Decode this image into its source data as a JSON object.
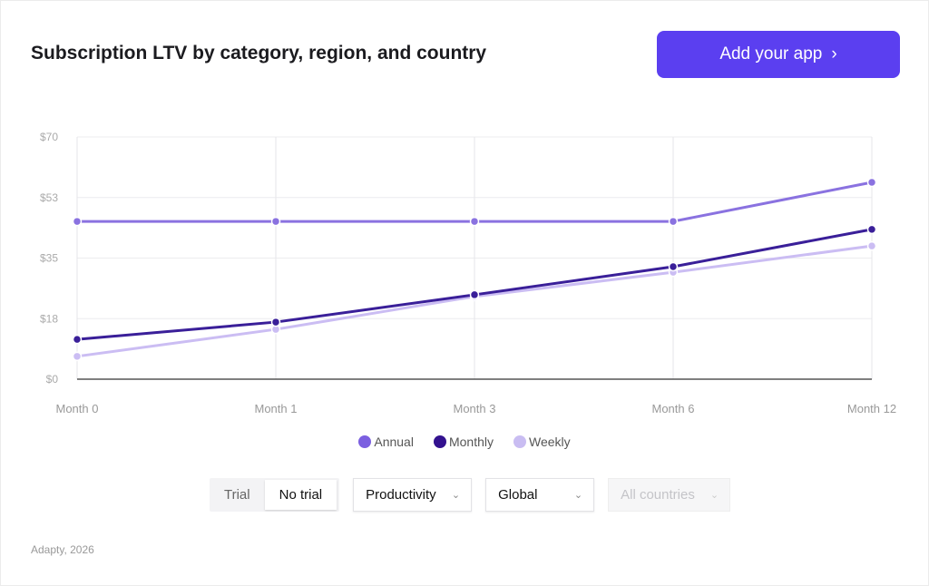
{
  "header": {
    "title": "Subscription LTV by category, region, and country",
    "cta_label": "Add your app",
    "cta_icon": "chevron-right-icon",
    "accent": "#5b3ff0"
  },
  "chart_data": {
    "type": "line",
    "categories": [
      "Month 0",
      "Month 1",
      "Month 3",
      "Month 6",
      "Month 12"
    ],
    "yticks": [
      "$0",
      "$18",
      "$35",
      "$53",
      "$70"
    ],
    "ylim": [
      0,
      70
    ],
    "grid": true,
    "legend_placement": "bottom",
    "series": [
      {
        "name": "Annual",
        "color": "#8a72e0",
        "values": [
          45.6,
          45.6,
          45.6,
          45.6,
          56.9
        ]
      },
      {
        "name": "Monthly",
        "color": "#3a1f99",
        "values": [
          11.5,
          16.5,
          24.4,
          32.5,
          43.3
        ]
      },
      {
        "name": "Weekly",
        "color": "#cbbdf3",
        "values": [
          6.6,
          14.4,
          23.9,
          30.9,
          38.5
        ]
      }
    ]
  },
  "legend_dot_colors": [
    "#7b5fe0",
    "#33128f",
    "#c9bdf2"
  ],
  "controls": {
    "trial_options": [
      "Trial",
      "No trial"
    ],
    "trial_selected": "No trial",
    "category": "Productivity",
    "region": "Global",
    "country": "All countries",
    "dropdown_icon": "chevron-down-icon"
  },
  "footer": "Adapty, 2026"
}
